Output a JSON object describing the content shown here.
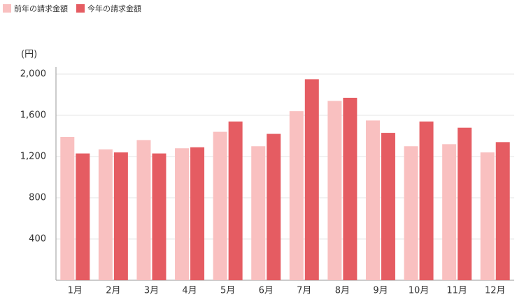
{
  "chart_data": {
    "type": "bar",
    "y_label": "(円)",
    "categories": [
      "1月",
      "2月",
      "3月",
      "4月",
      "5月",
      "6月",
      "7月",
      "8月",
      "9月",
      "10月",
      "11月",
      "12月"
    ],
    "series": [
      {
        "name": "前年の請求金額",
        "color": "#f9c0c0",
        "values": [
          1390,
          1270,
          1360,
          1280,
          1440,
          1300,
          1640,
          1740,
          1550,
          1300,
          1320,
          1240
        ]
      },
      {
        "name": "今年の請求金額",
        "color": "#e55c62",
        "values": [
          1230,
          1240,
          1230,
          1290,
          1540,
          1420,
          1950,
          1770,
          1430,
          1540,
          1480,
          1340
        ]
      }
    ],
    "ylim": [
      0,
      2000
    ],
    "yticks": [
      400,
      800,
      {
        "value": 1200,
        "label": "1,200"
      },
      {
        "value": 1600,
        "label": "1,600"
      },
      {
        "value": 2000,
        "label": "2,000"
      }
    ],
    "grid": true
  }
}
